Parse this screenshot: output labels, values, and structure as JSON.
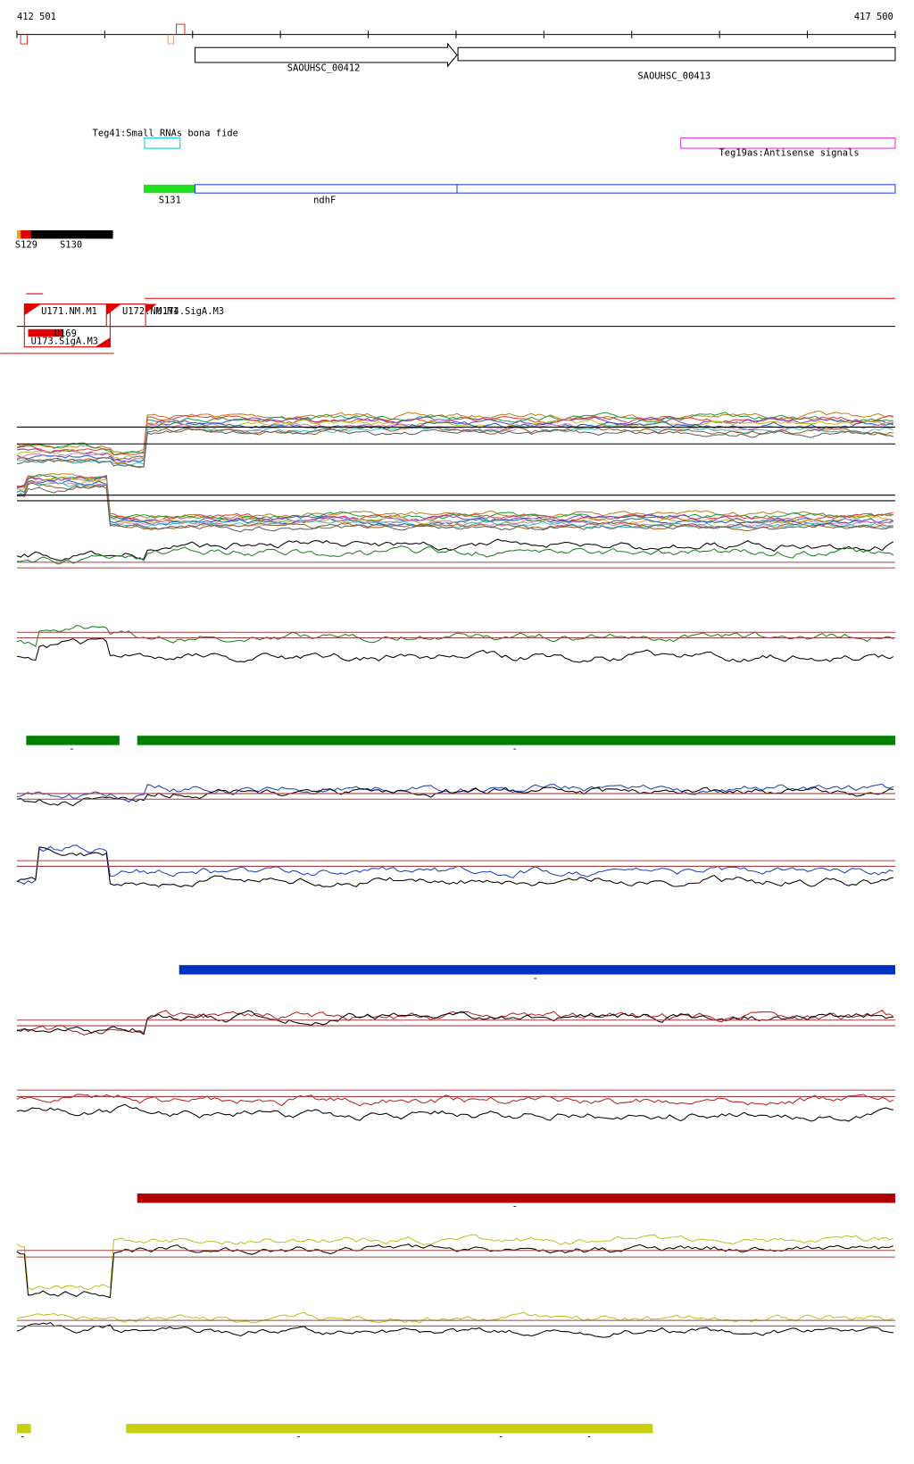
{
  "axis": {
    "start": "412 501",
    "end": "417 500"
  },
  "genes": [
    {
      "label": "SAOUHSC_00412"
    },
    {
      "label": "SAOUHSC_00413"
    }
  ],
  "features": [
    {
      "label": "Teg41:Small RNAs bona fide"
    },
    {
      "label": "Teg19as:Antisense signals"
    }
  ],
  "segments": [
    {
      "label": "S131"
    },
    {
      "label": "ndhF"
    },
    {
      "label": "S129"
    },
    {
      "label": "S130"
    }
  ],
  "promoters": [
    {
      "label": "U171.NM.M1"
    },
    {
      "label": "U172.NM.M1"
    },
    {
      "label": "U174.SigA.M3"
    },
    {
      "label": "U173.SigA.M3"
    },
    {
      "label": "U169"
    }
  ],
  "strands": [
    "-",
    "-",
    "-",
    "-",
    "-",
    "-",
    "-",
    "-"
  ]
}
